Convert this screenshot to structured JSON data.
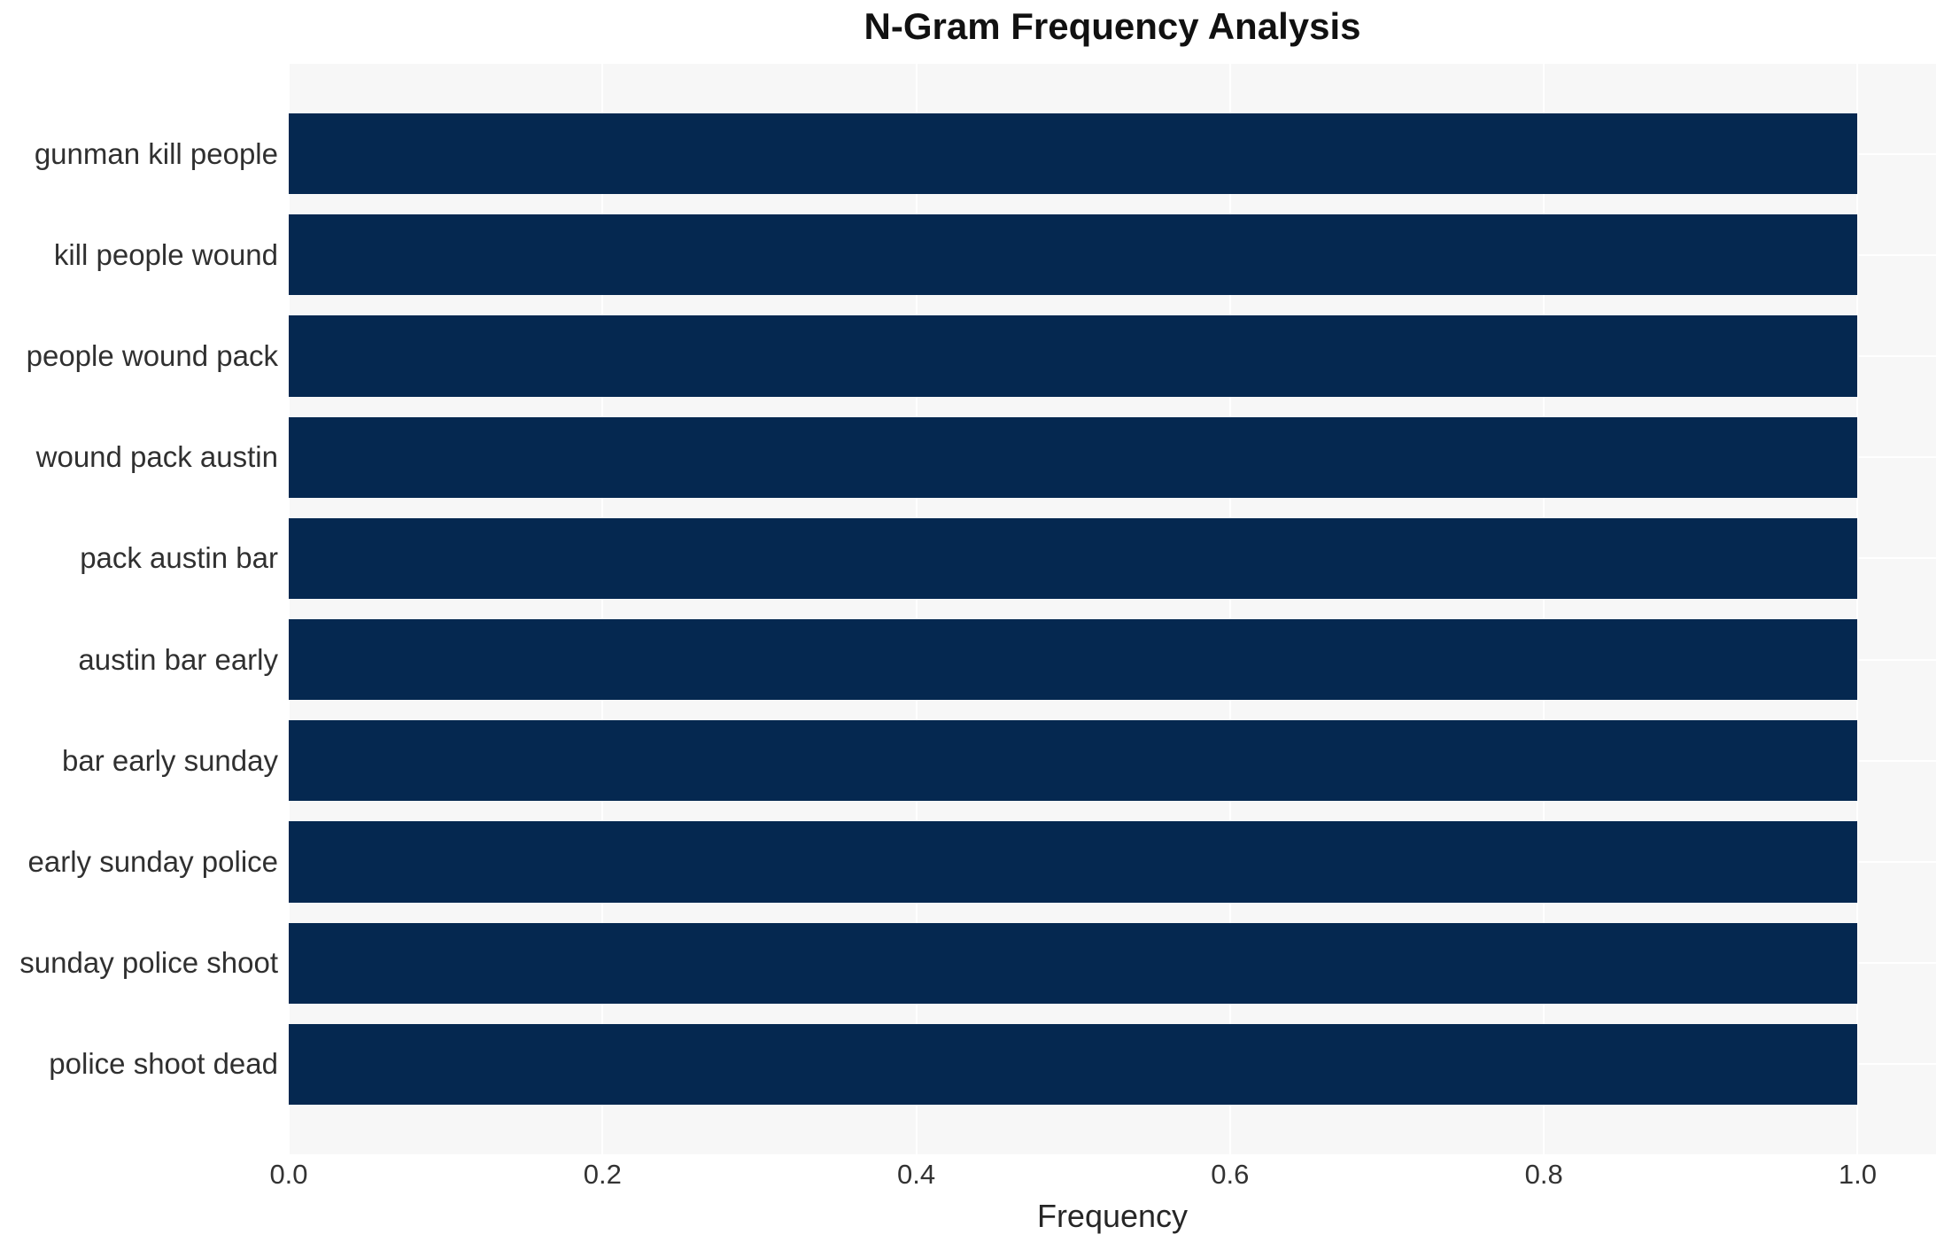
{
  "chart_data": {
    "type": "bar",
    "orientation": "horizontal",
    "title": "N-Gram Frequency Analysis",
    "xlabel": "Frequency",
    "ylabel": "",
    "categories": [
      "gunman kill people",
      "kill people wound",
      "people wound pack",
      "wound pack austin",
      "pack austin bar",
      "austin bar early",
      "bar early sunday",
      "early sunday police",
      "sunday police shoot",
      "police shoot dead"
    ],
    "values": [
      1.0,
      1.0,
      1.0,
      1.0,
      1.0,
      1.0,
      1.0,
      1.0,
      1.0,
      1.0
    ],
    "x_tick_labels": [
      "0.0",
      "0.2",
      "0.4",
      "0.6",
      "0.8",
      "1.0"
    ],
    "x_tick_values": [
      0.0,
      0.2,
      0.4,
      0.6,
      0.8,
      1.0
    ],
    "xlim": [
      0.0,
      1.05
    ],
    "grid": true,
    "legend": false,
    "colors": {
      "bar": "#052850",
      "plot_background": "#f7f7f7",
      "gridline": "#ffffff",
      "figure_background": "#ffffff",
      "title_text": "#111111",
      "tick_text": "#333333"
    }
  }
}
